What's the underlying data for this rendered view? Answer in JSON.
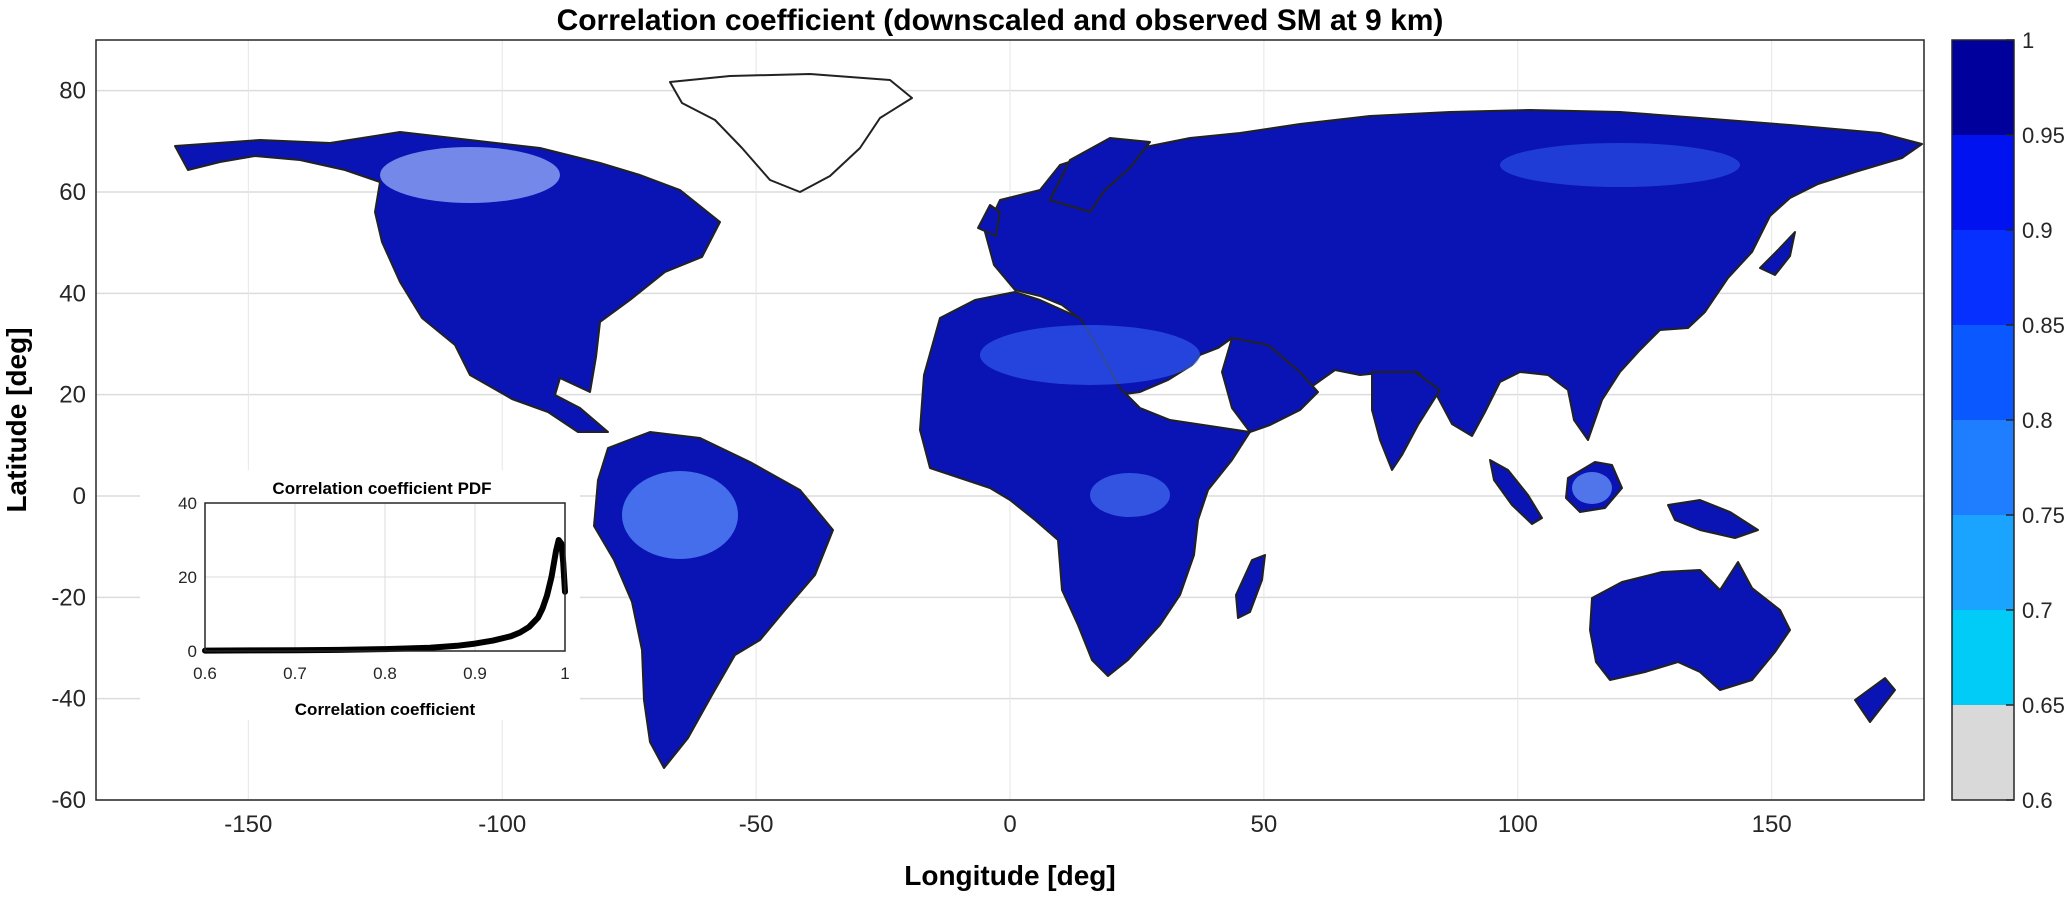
{
  "chart_data": [
    {
      "type": "heatmap",
      "title": "Correlation coefficient (downscaled and observed SM at 9 km)",
      "xlabel": "Longitude [deg]",
      "ylabel": "Latitude [deg]",
      "xlim": [
        -180,
        180
      ],
      "ylim": [
        -60,
        90
      ],
      "x_ticks": [
        -150,
        -100,
        -50,
        0,
        50,
        100,
        150
      ],
      "y_ticks": [
        -60,
        -40,
        -20,
        0,
        20,
        40,
        60,
        80
      ],
      "grid": true,
      "colorbar": {
        "range": [
          0.6,
          1
        ],
        "tick_labels": [
          "0.6",
          "0.65",
          "0.7",
          "0.75",
          "0.8",
          "0.85",
          "0.9",
          "0.95",
          "1"
        ],
        "bins": [
          {
            "from": 0.6,
            "to": 0.65,
            "color": "#d9d9d9"
          },
          {
            "from": 0.65,
            "to": 0.7,
            "color": "#00ccf7"
          },
          {
            "from": 0.7,
            "to": 0.75,
            "color": "#1aa3ff"
          },
          {
            "from": 0.75,
            "to": 0.8,
            "color": "#1f7dff"
          },
          {
            "from": 0.8,
            "to": 0.85,
            "color": "#0a58ff"
          },
          {
            "from": 0.85,
            "to": 0.9,
            "color": "#0530ff"
          },
          {
            "from": 0.9,
            "to": 0.95,
            "color": "#0012f0"
          },
          {
            "from": 0.95,
            "to": 1.0,
            "color": "#00009c"
          }
        ]
      },
      "map_fill_color": "#0a14b4"
    },
    {
      "type": "line",
      "title": "Correlation coefficient PDF",
      "xlabel": "Correlation coefficient",
      "ylabel": "",
      "xlim": [
        0.6,
        1
      ],
      "ylim": [
        0,
        40
      ],
      "x_ticks": [
        "0.6",
        "0.7",
        "0.8",
        "0.9",
        "1"
      ],
      "y_ticks": [
        "0",
        "20",
        "40"
      ],
      "grid": true,
      "series": [
        {
          "x": [
            0.6,
            0.65,
            0.7,
            0.75,
            0.8,
            0.85,
            0.88,
            0.9,
            0.92,
            0.94,
            0.95,
            0.96,
            0.97,
            0.975,
            0.98,
            0.985,
            0.99,
            0.993,
            0.996,
            0.998,
            1.0
          ],
          "values": [
            0.1,
            0.15,
            0.2,
            0.3,
            0.5,
            0.9,
            1.4,
            2.0,
            2.8,
            4.0,
            5.0,
            6.5,
            9.0,
            11.5,
            15.0,
            20.0,
            27.0,
            30.0,
            29.0,
            24.0,
            16.0
          ]
        }
      ]
    }
  ]
}
